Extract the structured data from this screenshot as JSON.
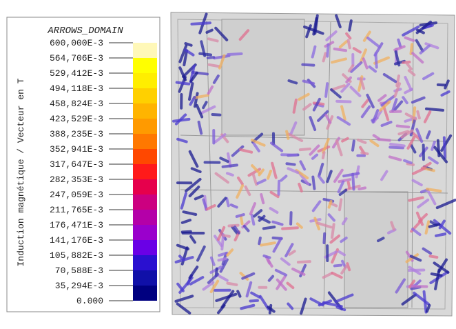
{
  "legend": {
    "title": "ARROWS_DOMAIN",
    "axis_label": "Induction magnétique / Vecteur en T",
    "ticks": [
      "600,000E-3",
      "564,706E-3",
      "529,412E-3",
      "494,118E-3",
      "458,824E-3",
      "423,529E-3",
      "388,235E-3",
      "352,941E-3",
      "317,647E-3",
      "282,353E-3",
      "247,059E-3",
      "211,765E-3",
      "176,471E-3",
      "141,176E-3",
      "105,882E-3",
      "70,588E-3",
      "35,294E-3",
      "0.000"
    ],
    "colors": [
      "#fff8b8",
      "#ffff00",
      "#ffee00",
      "#ffd000",
      "#ffb400",
      "#ff9a00",
      "#ff7800",
      "#ff4800",
      "#ff1a1a",
      "#e6004c",
      "#cc0080",
      "#b400a8",
      "#9a00cc",
      "#6a00e6",
      "#2a10d0",
      "#1010a8",
      "#000080"
    ]
  }
}
